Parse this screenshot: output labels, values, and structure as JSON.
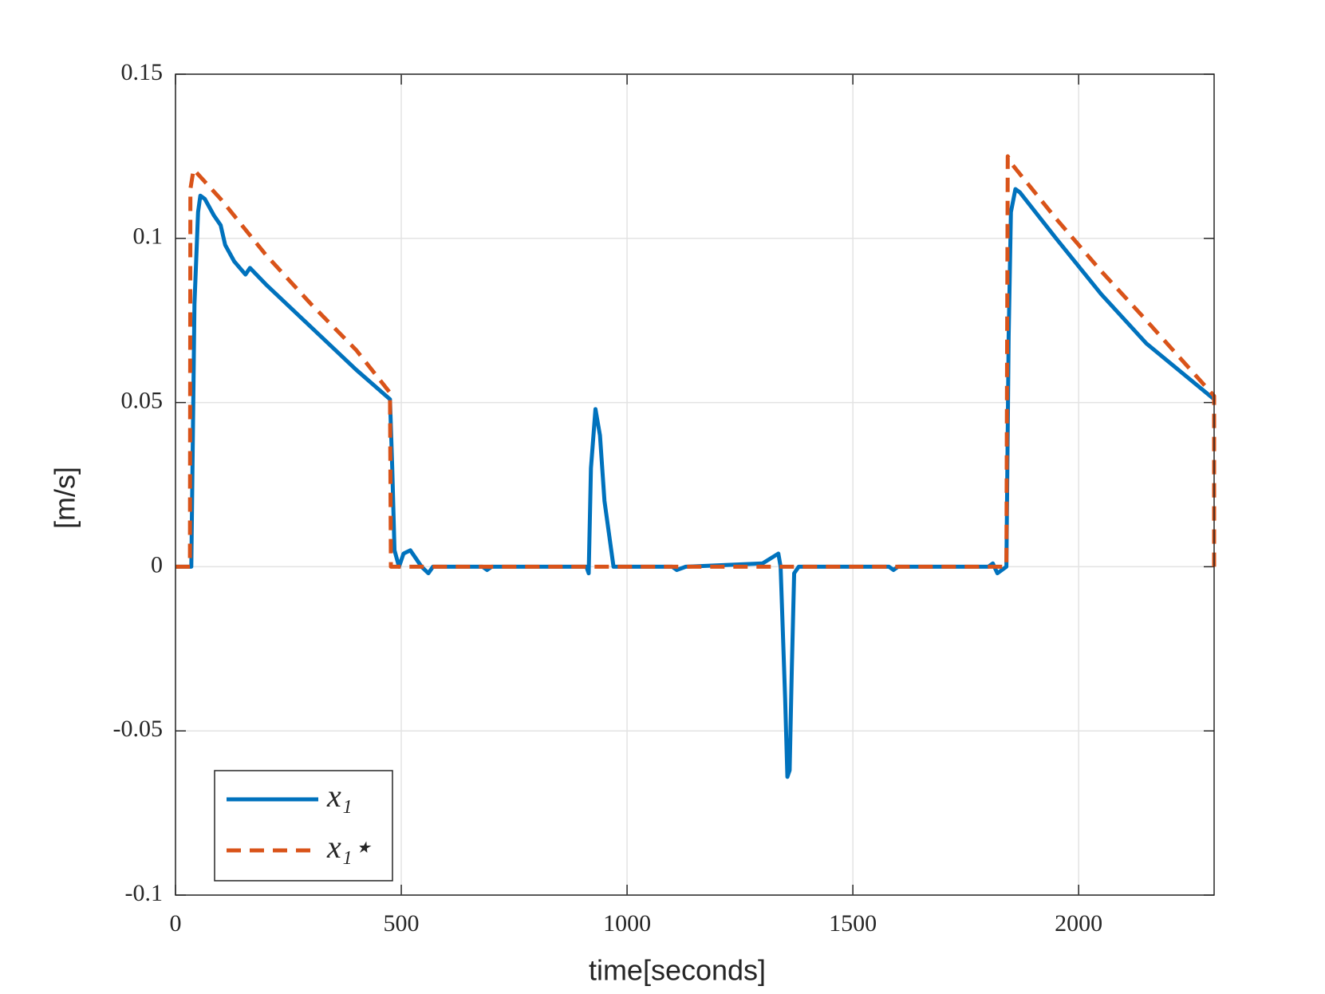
{
  "chart_data": {
    "type": "line",
    "xlabel": "time[seconds]",
    "ylabel": "[m/s]",
    "xlim": [
      0,
      2300
    ],
    "xticks": [
      0,
      500,
      1000,
      1500,
      2000
    ],
    "ylim": [
      -0.1,
      0.15
    ],
    "yticks": [
      -0.1,
      -0.05,
      0,
      0.05,
      0.1,
      0.15
    ],
    "grid": true,
    "legend": "lower left",
    "series": [
      {
        "name": "x₁",
        "color": "#0072BD",
        "style": "solid",
        "x": [
          0,
          30,
          35,
          42,
          50,
          55,
          65,
          85,
          100,
          110,
          130,
          155,
          165,
          200,
          300,
          400,
          475,
          480,
          485,
          495,
          505,
          520,
          545,
          560,
          570,
          680,
          690,
          700,
          910,
          915,
          920,
          930,
          940,
          950,
          960,
          970,
          1100,
          1110,
          1130,
          1300,
          1335,
          1340,
          1350,
          1355,
          1360,
          1365,
          1370,
          1380,
          1580,
          1590,
          1600,
          1800,
          1810,
          1820,
          1840,
          1845,
          1850,
          1860,
          1870,
          1950,
          2050,
          2150,
          2300
        ],
        "values": [
          0,
          0,
          0,
          0.08,
          0.108,
          0.113,
          0.112,
          0.107,
          0.104,
          0.098,
          0.093,
          0.089,
          0.091,
          0.086,
          0.073,
          0.06,
          0.051,
          0.03,
          0.005,
          0,
          0.004,
          0.005,
          0,
          -0.002,
          0,
          0,
          -0.001,
          0,
          0,
          -0.002,
          0.03,
          0.048,
          0.04,
          0.02,
          0.01,
          0,
          0,
          -0.001,
          0,
          0.001,
          0.004,
          0,
          -0.04,
          -0.064,
          -0.062,
          -0.03,
          -0.002,
          0,
          0,
          -0.001,
          0,
          0,
          0.001,
          -0.002,
          0,
          0.07,
          0.108,
          0.115,
          0.114,
          0.1,
          0.083,
          0.068,
          0.051
        ]
      },
      {
        "name": "x₁⋆",
        "color": "#D95319",
        "style": "dashed",
        "x": [
          0,
          32,
          33,
          40,
          100,
          200,
          300,
          400,
          475,
          477,
          1840,
          1843,
          1850,
          1950,
          2050,
          2150,
          2300,
          2300
        ],
        "values": [
          0,
          0,
          0.115,
          0.121,
          0.112,
          0.095,
          0.08,
          0.066,
          0.053,
          0,
          0,
          0.125,
          0.123,
          0.106,
          0.09,
          0.075,
          0.052,
          0
        ]
      }
    ]
  }
}
